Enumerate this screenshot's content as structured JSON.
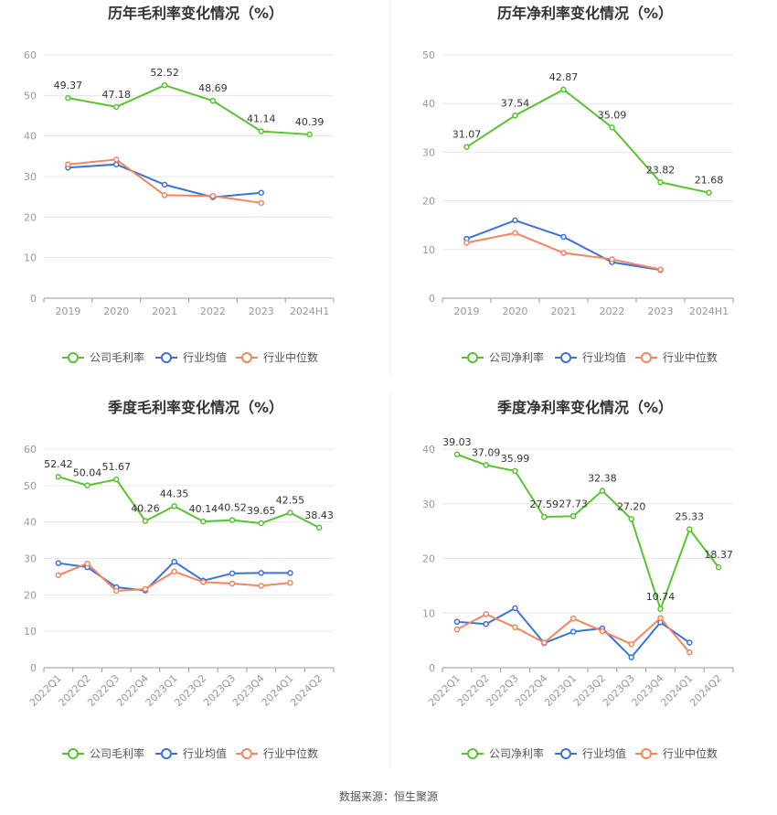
{
  "source_text": "数据来源：恒生聚源",
  "colors": {
    "company": "#59c22f",
    "avg": "#3a72d8",
    "median": "#f4855c"
  },
  "chart_data": [
    {
      "type": "line",
      "title": "历年毛利率变化情况（%）",
      "categories": [
        "2019",
        "2020",
        "2021",
        "2022",
        "2023",
        "2024H1"
      ],
      "ylim": [
        0,
        60
      ],
      "yticks": [
        0,
        10,
        20,
        30,
        40,
        50,
        60
      ],
      "xlabel": "",
      "ylabel": "",
      "series": [
        {
          "name": "公司毛利率",
          "key": "company",
          "labeled": true,
          "values": [
            49.37,
            47.18,
            52.52,
            48.69,
            41.14,
            40.39
          ],
          "labels": [
            "49.37",
            "47.18",
            "52.52",
            "48.69",
            "41.14",
            "40.39"
          ]
        },
        {
          "name": "行业均值",
          "key": "avg",
          "values": [
            32.2,
            33.0,
            28.0,
            24.9,
            26.0,
            null
          ]
        },
        {
          "name": "行业中位数",
          "key": "median",
          "values": [
            33.0,
            34.2,
            25.4,
            25.2,
            23.5,
            null
          ]
        }
      ]
    },
    {
      "type": "line",
      "title": "历年净利率变化情况（%）",
      "categories": [
        "2019",
        "2020",
        "2021",
        "2022",
        "2023",
        "2024H1"
      ],
      "ylim": [
        0,
        50
      ],
      "yticks": [
        0,
        10,
        20,
        30,
        40,
        50
      ],
      "xlabel": "",
      "ylabel": "",
      "series": [
        {
          "name": "公司净利率",
          "key": "company",
          "labeled": true,
          "values": [
            31.07,
            37.54,
            42.87,
            35.09,
            23.82,
            21.68
          ],
          "labels": [
            "31.07",
            "37.54",
            "42.87",
            "35.09",
            "23.82",
            "21.68"
          ]
        },
        {
          "name": "行业均值",
          "key": "avg",
          "values": [
            12.2,
            16.0,
            12.6,
            7.4,
            5.8,
            null
          ]
        },
        {
          "name": "行业中位数",
          "key": "median",
          "values": [
            11.4,
            13.4,
            9.3,
            8.0,
            5.9,
            null
          ]
        }
      ]
    },
    {
      "type": "line",
      "title": "季度毛利率变化情况（%）",
      "categories": [
        "2022Q1",
        "2022Q2",
        "2022Q3",
        "2022Q4",
        "2023Q1",
        "2023Q2",
        "2023Q3",
        "2023Q4",
        "2024Q1",
        "2024Q2"
      ],
      "ylim": [
        0,
        60
      ],
      "yticks": [
        0,
        10,
        20,
        30,
        40,
        50,
        60
      ],
      "xlabel": "",
      "ylabel": "",
      "series": [
        {
          "name": "公司毛利率",
          "key": "company",
          "labeled": true,
          "values": [
            52.42,
            50.04,
            51.67,
            40.26,
            44.35,
            40.14,
            40.52,
            39.65,
            42.55,
            38.43
          ],
          "labels": [
            "52.42",
            "50.04",
            "51.67",
            "40.26",
            "44.35",
            "40.14",
            "40.52",
            "39.65",
            "42.55",
            "38.43"
          ]
        },
        {
          "name": "行业均值",
          "key": "avg",
          "values": [
            28.7,
            27.6,
            22.1,
            21.2,
            29.1,
            23.9,
            25.9,
            26.0,
            26.0,
            null
          ]
        },
        {
          "name": "行业中位数",
          "key": "median",
          "values": [
            25.4,
            28.6,
            21.1,
            21.6,
            26.4,
            23.5,
            23.1,
            22.5,
            23.3,
            null
          ]
        }
      ]
    },
    {
      "type": "line",
      "title": "季度净利率变化情况（%）",
      "categories": [
        "2022Q1",
        "2022Q2",
        "2022Q3",
        "2022Q4",
        "2023Q1",
        "2023Q2",
        "2023Q3",
        "2023Q4",
        "2024Q1",
        "2024Q2"
      ],
      "ylim": [
        0,
        40
      ],
      "yticks": [
        0,
        10,
        20,
        30,
        40
      ],
      "xlabel": "",
      "ylabel": "",
      "series": [
        {
          "name": "公司净利率",
          "key": "company",
          "labeled": true,
          "values": [
            39.03,
            37.09,
            35.99,
            27.59,
            27.73,
            32.38,
            27.2,
            10.74,
            25.33,
            18.37
          ],
          "labels": [
            "39.03",
            "37.09",
            "35.99",
            "27.59",
            "27.73",
            "32.38",
            "27.20",
            "10.74",
            "25.33",
            "18.37"
          ]
        },
        {
          "name": "行业均值",
          "key": "avg",
          "values": [
            8.4,
            8.0,
            10.9,
            4.5,
            6.6,
            7.2,
            1.9,
            8.3,
            4.6,
            null
          ]
        },
        {
          "name": "行业中位数",
          "key": "median",
          "values": [
            7.0,
            9.8,
            7.4,
            4.6,
            9.0,
            6.7,
            4.3,
            9.1,
            2.8,
            null
          ]
        }
      ]
    }
  ]
}
